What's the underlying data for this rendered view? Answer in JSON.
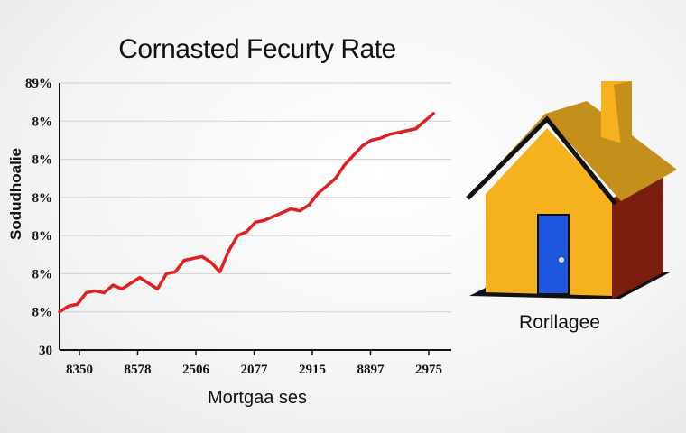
{
  "chart_data": {
    "type": "line",
    "title": "Cornasted Fecurty Rate",
    "xlabel": "Mortgaa ses",
    "ylabel": "Sodudhoalie",
    "x_tick_labels": [
      "8350",
      "8578",
      "2506",
      "2077",
      "2915",
      "8897",
      "2975"
    ],
    "y_tick_labels": [
      "30",
      "8%",
      "8%",
      "8%",
      "8%",
      "8%",
      "8%",
      "89%"
    ],
    "ylim": [
      0,
      7
    ],
    "xlim": [
      0,
      44
    ],
    "grid": true,
    "series": [
      {
        "color": "#e02020",
        "x": [
          0,
          1,
          2,
          3,
          4,
          5,
          6,
          7,
          8,
          9,
          10,
          11,
          12,
          13,
          14,
          15,
          16,
          17,
          18,
          19,
          20,
          21,
          22,
          23,
          24,
          25,
          26,
          27,
          28,
          29,
          30,
          31,
          32,
          33,
          34,
          35,
          36,
          37,
          38,
          39,
          40,
          41,
          42
        ],
        "values": [
          1.0,
          1.15,
          1.2,
          1.5,
          1.55,
          1.5,
          1.7,
          1.6,
          1.75,
          1.9,
          1.75,
          1.6,
          2.0,
          2.05,
          2.35,
          2.4,
          2.45,
          2.3,
          2.05,
          2.6,
          3.0,
          3.1,
          3.35,
          3.4,
          3.5,
          3.6,
          3.7,
          3.65,
          3.8,
          4.1,
          4.3,
          4.5,
          4.85,
          5.1,
          5.35,
          5.5,
          5.55,
          5.65,
          5.7,
          5.75,
          5.8,
          6.0,
          6.2
        ]
      }
    ]
  },
  "illustration": {
    "label": "Rorllagee",
    "icon": "house-icon",
    "colors": {
      "wall": "#f6b21e",
      "roof": "#c48f1a",
      "side": "#7a1f10",
      "door": "#1e58e0"
    }
  }
}
